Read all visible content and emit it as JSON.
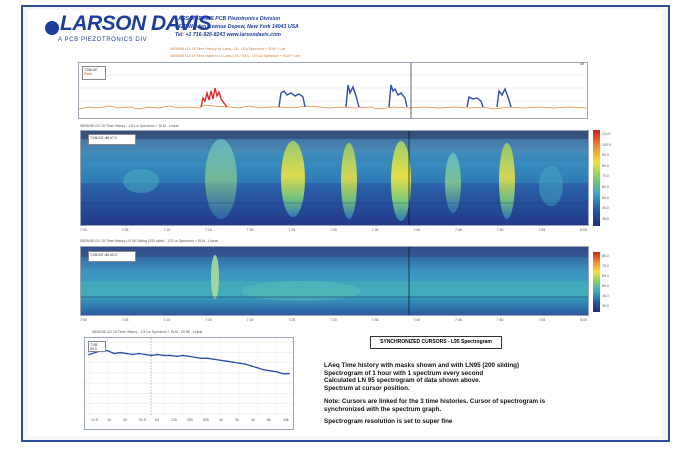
{
  "brand": {
    "logo_text": "LARSON DAVIS",
    "tagline": "A PCB PIEZOTRONICS DIV",
    "header_line1": "LARSON DAVIS  PCB Piezotronics Division",
    "header_line2": "3425 Walden Avenue Depew, New York 14043  USA",
    "header_line3": "Tel: +1 716-926-8243  www.larsondavis.com",
    "color": "#1e3e9c"
  },
  "report": {
    "title_line1": "08/05/08 LD/ 15 Time History for Laeq - 16 - LEq Spectrum + SLM + Lbs",
    "title_line2": "08/05/08 LD/ 15 Time Make to Lr  Laeq  ( 16 / 200) - 1/3 Lw Spectrum + SLM + Lbs"
  },
  "colorbar": {
    "labels_main": [
      "110.0",
      "100.0",
      "90.0",
      "80.0",
      "70.0",
      "60.0",
      "50.0",
      "40.0",
      "30.0"
    ],
    "labels_second": [
      "85.0",
      "75.0",
      "65.0",
      "55.0",
      "45.0",
      "35.0"
    ]
  },
  "time_axis": [
    "7:00",
    "7:05",
    "7:10",
    "7:15",
    "7:20",
    "7:25",
    "7:30",
    "7:35",
    "7:40",
    "7:45",
    "7:50",
    "7:55",
    "8:00"
  ],
  "panels": {
    "history_title": "LAeq Time History",
    "history_legend": [
      "T1/B/1/E",
      "Peak"
    ],
    "spectrogram1_title": "08/05/08 LD/ 15 Time History - 1/3 Lw Spectrum + SLM - Linear",
    "spectrogram1_legend": [
      "T1/B/1/E",
      "dB",
      "67.0"
    ],
    "spectrogram2_title": "08/05/08 LD/ 15 Time History LN 95 Sliding (200 slide) - 1/3 Lw Spectrum + SLM - Linear",
    "spectrogram2_legend": [
      "T1/B/1/E",
      "dB",
      "60.0"
    ],
    "spectrum_title": "08/05/08 LD/ 15 Time History - 1/3 Lw Spectrum + SLM - 20:58 - Linear",
    "spectrum_legend": [
      "T1/B",
      "60.0"
    ]
  },
  "spectrum_axis_x": [
    "12.5",
    "16",
    "20",
    "31.5",
    "63",
    "125",
    "250",
    "500",
    "1k",
    "2k",
    "4k",
    "8k",
    "20k"
  ],
  "spectrum_axis_y": [
    "70",
    "60",
    "50",
    "40",
    "30",
    "20",
    "10"
  ],
  "cursor_box": "SYNCHRONIZED CURSORS - L95 Spectrogram",
  "notes": {
    "line1": "LAeq Time history with masks shown and with LN95 (200 sliding)",
    "line2": "Spectrogram of 1 hour with 1 spectrum every second",
    "line3": "Calculated LN 95 spectrogram of data shown above.",
    "line4": "Spectrum at cursor position.",
    "note1": "Note: Cursors are linked for the 3 time histories. Cursor of spectrogram is",
    "note2": "synchronized with the spectrum graph.",
    "res": "Spectrogram resolution is set to super fine"
  },
  "chart_data": {
    "type": "line",
    "x": [
      "12.5",
      "16",
      "20",
      "25",
      "31.5",
      "40",
      "50",
      "63",
      "80",
      "100",
      "125",
      "160",
      "200",
      "250",
      "315",
      "400",
      "500",
      "630",
      "800",
      "1k",
      "1.25k",
      "1.6k",
      "2k",
      "2.5k",
      "3.15k",
      "4k",
      "5k",
      "6.3k",
      "8k",
      "10k",
      "12.5k",
      "16k",
      "20k"
    ],
    "values": [
      62,
      64,
      66,
      66,
      63,
      64,
      63,
      62,
      63,
      62,
      61,
      62,
      61,
      61,
      60,
      61,
      60,
      59,
      58,
      58,
      57,
      56,
      55,
      54,
      53,
      52,
      50,
      48,
      46,
      45,
      44,
      42,
      42
    ],
    "ylim": [
      0,
      75
    ],
    "color": "#2c4fa8"
  }
}
